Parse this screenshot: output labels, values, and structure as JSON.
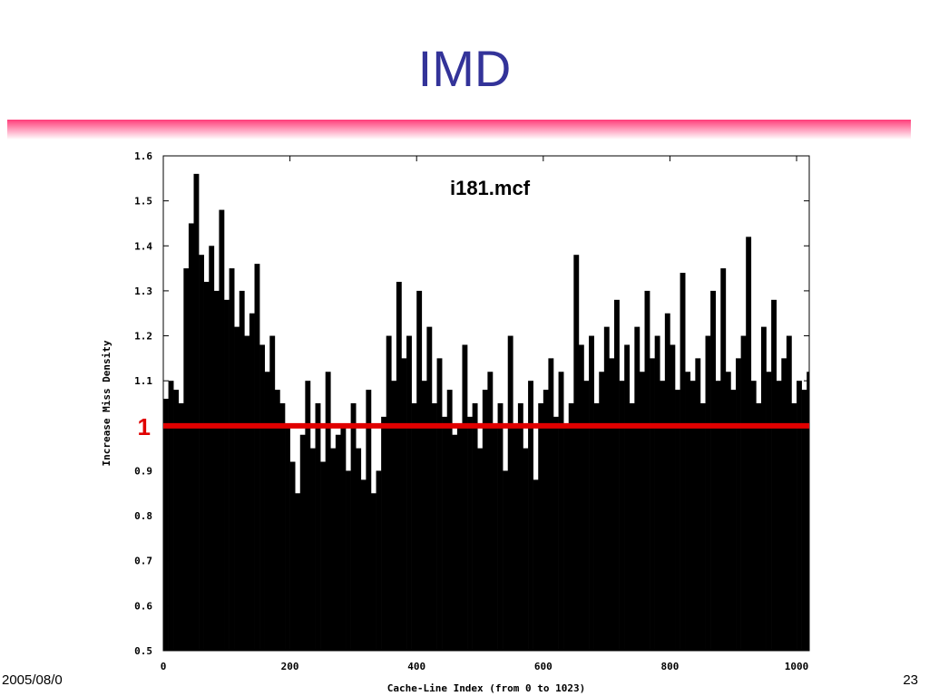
{
  "slide": {
    "title": "IMD",
    "footer": "2005/08/0",
    "page": "23"
  },
  "chart_data": {
    "type": "bar",
    "title": "i181.mcf",
    "x_label": "Cache-Line Index (from 0 to 1023)",
    "y_label": "Increase Miss Density",
    "color": "#000000",
    "x": [
      0,
      8,
      16,
      24,
      32,
      40,
      48,
      56,
      64,
      72,
      80,
      88,
      96,
      104,
      112,
      120,
      128,
      136,
      144,
      152,
      160,
      168,
      176,
      184,
      192,
      200,
      208,
      216,
      224,
      232,
      240,
      248,
      256,
      264,
      272,
      280,
      288,
      296,
      304,
      312,
      320,
      328,
      336,
      344,
      352,
      360,
      368,
      376,
      384,
      392,
      400,
      408,
      416,
      424,
      432,
      440,
      448,
      456,
      464,
      472,
      480,
      488,
      496,
      504,
      512,
      520,
      528,
      536,
      544,
      552,
      560,
      568,
      576,
      584,
      592,
      600,
      608,
      616,
      624,
      632,
      640,
      648,
      656,
      664,
      672,
      680,
      688,
      696,
      704,
      712,
      720,
      728,
      736,
      744,
      752,
      760,
      768,
      776,
      784,
      792,
      800,
      808,
      816,
      824,
      832,
      840,
      848,
      856,
      864,
      872,
      880,
      888,
      896,
      904,
      912,
      920,
      928,
      936,
      944,
      952,
      960,
      968,
      976,
      984,
      992,
      1000,
      1008,
      1016
    ],
    "values": [
      1.06,
      1.1,
      1.08,
      1.05,
      1.35,
      1.45,
      1.56,
      1.38,
      1.32,
      1.4,
      1.3,
      1.48,
      1.28,
      1.35,
      1.22,
      1.3,
      1.2,
      1.25,
      1.36,
      1.18,
      1.12,
      1.2,
      1.08,
      1.05,
      1.0,
      0.92,
      0.85,
      0.98,
      1.1,
      0.95,
      1.05,
      0.92,
      1.12,
      0.95,
      0.98,
      1.0,
      0.9,
      1.05,
      0.95,
      0.88,
      1.08,
      0.85,
      0.9,
      1.02,
      1.2,
      1.1,
      1.32,
      1.15,
      1.2,
      1.05,
      1.3,
      1.1,
      1.22,
      1.05,
      1.15,
      1.02,
      1.08,
      0.98,
      1.0,
      1.18,
      1.02,
      1.05,
      0.95,
      1.08,
      1.12,
      1.0,
      1.05,
      0.9,
      1.2,
      1.0,
      1.05,
      0.95,
      1.1,
      0.88,
      1.05,
      1.08,
      1.15,
      1.02,
      1.12,
      1.0,
      1.05,
      1.38,
      1.18,
      1.1,
      1.2,
      1.05,
      1.12,
      1.22,
      1.15,
      1.28,
      1.1,
      1.18,
      1.05,
      1.22,
      1.12,
      1.3,
      1.15,
      1.2,
      1.1,
      1.25,
      1.18,
      1.08,
      1.34,
      1.12,
      1.1,
      1.15,
      1.05,
      1.2,
      1.3,
      1.1,
      1.35,
      1.12,
      1.08,
      1.15,
      1.2,
      1.42,
      1.1,
      1.05,
      1.22,
      1.12,
      1.28,
      1.1,
      1.15,
      1.2,
      1.05,
      1.1,
      1.08,
      1.12
    ],
    "xlim": [
      0,
      1020
    ],
    "xticks": [
      0,
      200,
      400,
      600,
      800,
      1000
    ],
    "ylim": [
      0.5,
      1.6
    ],
    "yticks": [
      0.5,
      0.6,
      0.7,
      0.8,
      0.9,
      1,
      1.1,
      1.2,
      1.3,
      1.4,
      1.5,
      1.6
    ],
    "reference_line": {
      "value": 1,
      "color": "#e00000"
    }
  }
}
